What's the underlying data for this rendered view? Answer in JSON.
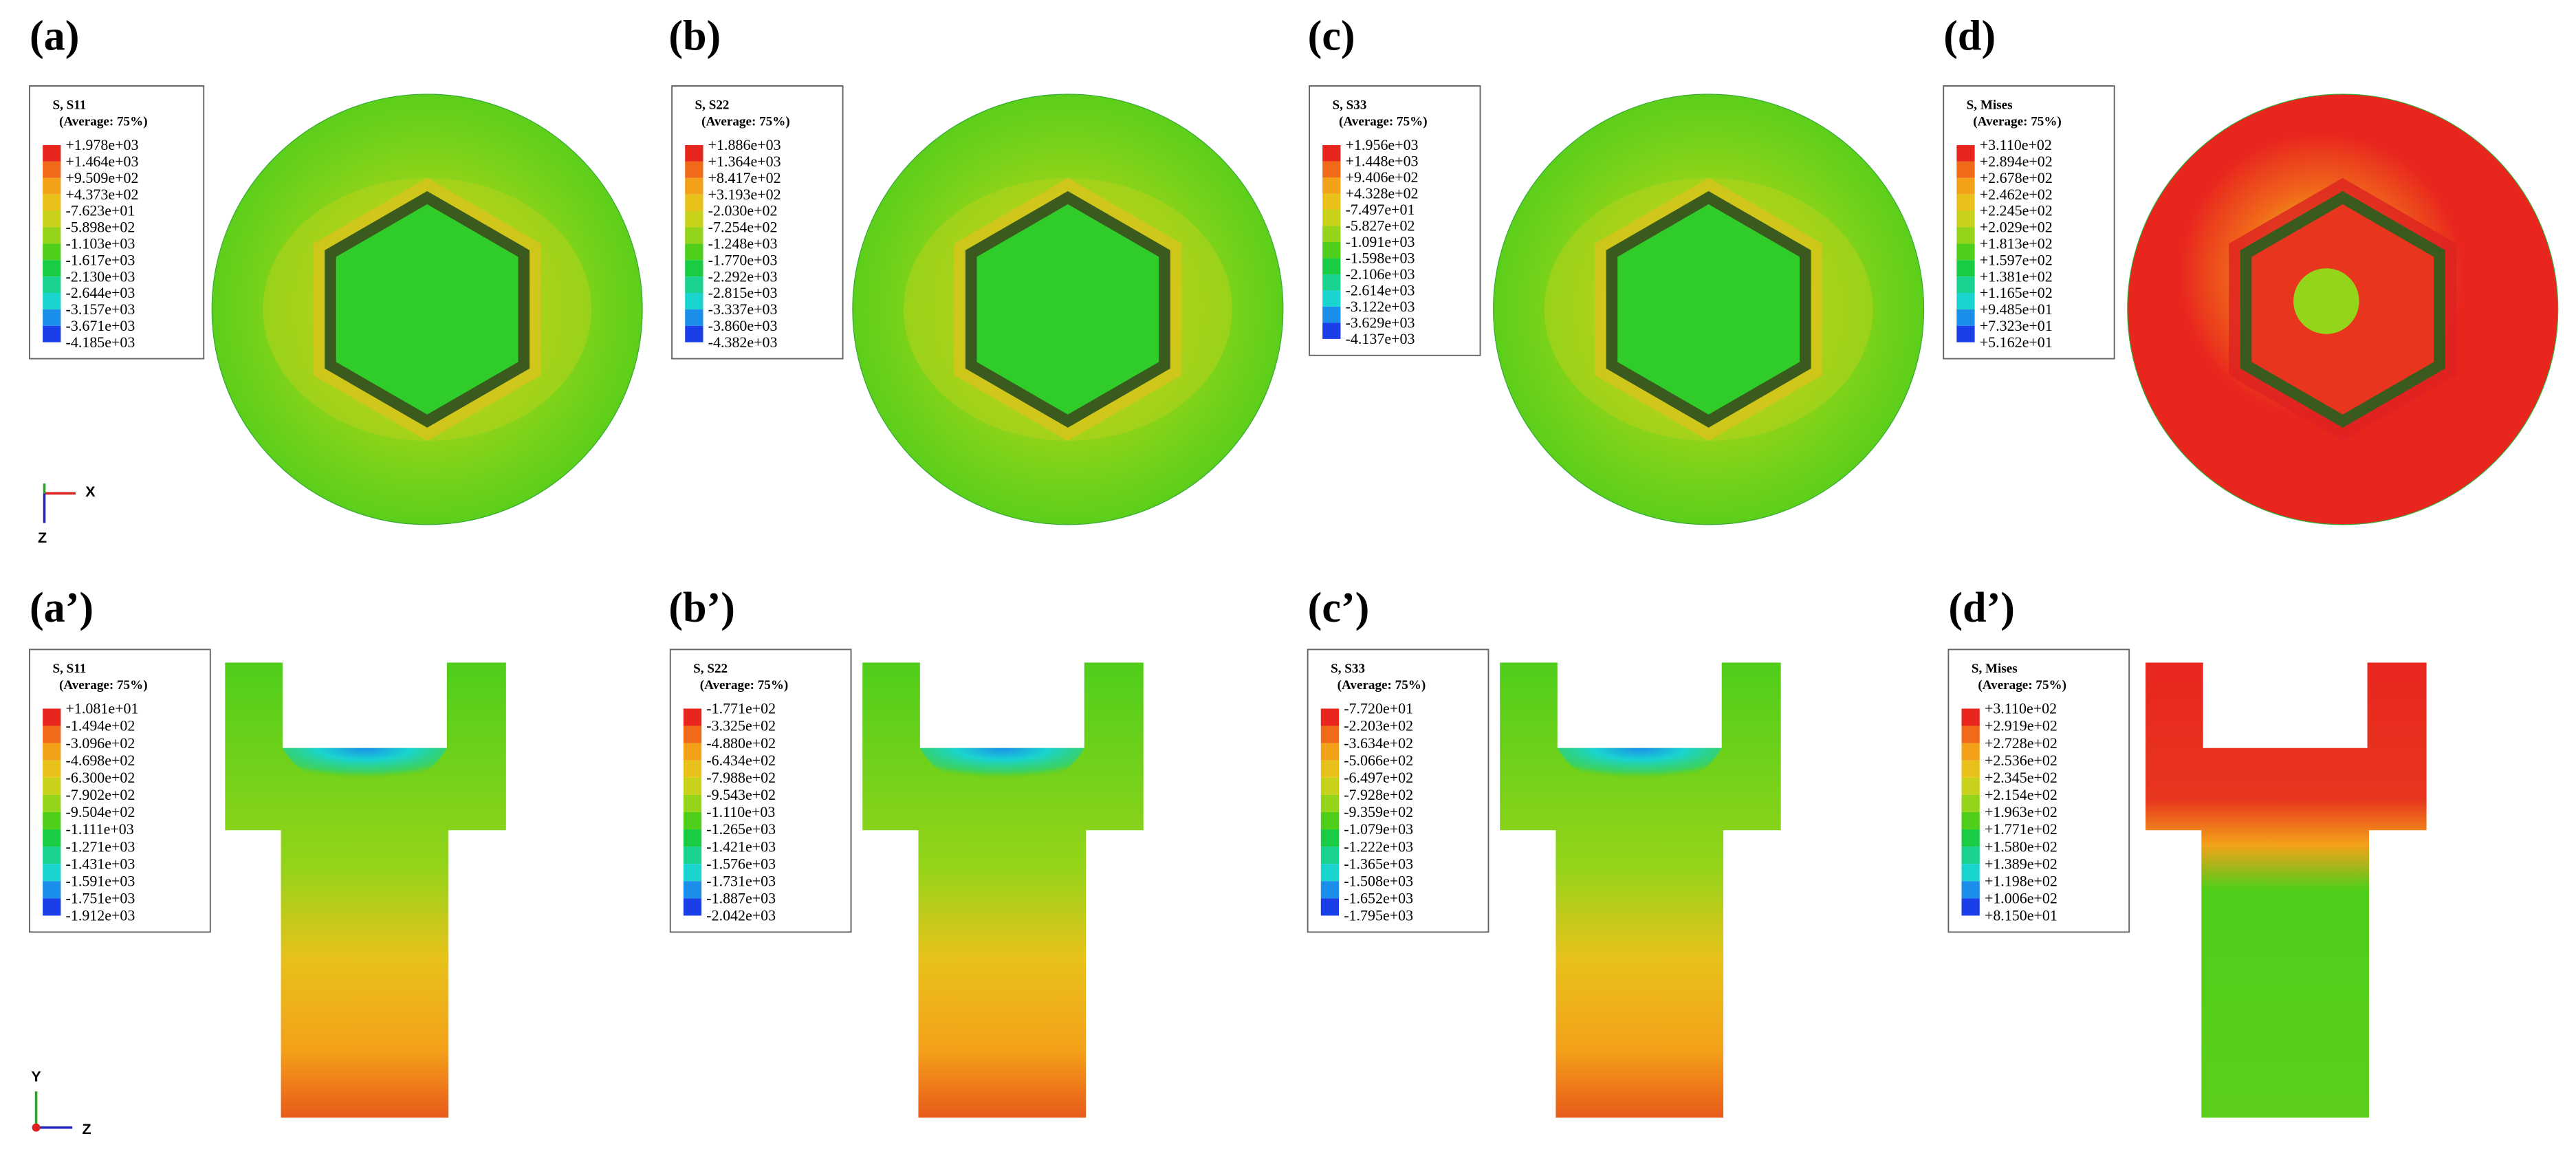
{
  "panels": [
    {
      "label": "(a)",
      "legend_title": "S, S11",
      "legend_subtitle": "(Average: 75%)",
      "legend_values": [
        "+1.978e+03",
        "+1.464e+03",
        "+9.509e+02",
        "+4.373e+02",
        "-7.623e+01",
        "-5.898e+02",
        "-1.103e+03",
        "-1.617e+03",
        "-2.130e+03",
        "-2.644e+03",
        "-3.157e+03",
        "-3.671e+03",
        "-4.185e+03"
      ]
    },
    {
      "label": "(b)",
      "legend_title": "S, S22",
      "legend_subtitle": "(Average: 75%)",
      "legend_values": [
        "+1.886e+03",
        "+1.364e+03",
        "+8.417e+02",
        "+3.193e+02",
        "-2.030e+02",
        "-7.254e+02",
        "-1.248e+03",
        "-1.770e+03",
        "-2.292e+03",
        "-2.815e+03",
        "-3.337e+03",
        "-3.860e+03",
        "-4.382e+03"
      ]
    },
    {
      "label": "(c)",
      "legend_title": "S, S33",
      "legend_subtitle": "(Average: 75%)",
      "legend_values": [
        "+1.956e+03",
        "+1.448e+03",
        "+9.406e+02",
        "+4.328e+02",
        "-7.497e+01",
        "-5.827e+02",
        "-1.091e+03",
        "-1.598e+03",
        "-2.106e+03",
        "-2.614e+03",
        "-3.122e+03",
        "-3.629e+03",
        "-4.137e+03"
      ]
    },
    {
      "label": "(d)",
      "legend_title": "S, Mises",
      "legend_subtitle": "(Average: 75%)",
      "legend_values": [
        "+3.110e+02",
        "+2.894e+02",
        "+2.678e+02",
        "+2.462e+02",
        "+2.245e+02",
        "+2.029e+02",
        "+1.813e+02",
        "+1.597e+02",
        "+1.381e+02",
        "+1.165e+02",
        "+9.485e+01",
        "+7.323e+01",
        "+5.162e+01"
      ]
    },
    {
      "label": "(a’)",
      "legend_title": "S, S11",
      "legend_subtitle": "(Average: 75%)",
      "legend_values": [
        "+1.081e+01",
        "-1.494e+02",
        "-3.096e+02",
        "-4.698e+02",
        "-6.300e+02",
        "-7.902e+02",
        "-9.504e+02",
        "-1.111e+03",
        "-1.271e+03",
        "-1.431e+03",
        "-1.591e+03",
        "-1.751e+03",
        "-1.912e+03"
      ]
    },
    {
      "label": "(b’)",
      "legend_title": "S, S22",
      "legend_subtitle": "(Average: 75%)",
      "legend_values": [
        "-1.771e+02",
        "-3.325e+02",
        "-4.880e+02",
        "-6.434e+02",
        "-7.988e+02",
        "-9.543e+02",
        "-1.110e+03",
        "-1.265e+03",
        "-1.421e+03",
        "-1.576e+03",
        "-1.731e+03",
        "-1.887e+03",
        "-2.042e+03"
      ]
    },
    {
      "label": "(c’)",
      "legend_title": "S, S33",
      "legend_subtitle": "(Average: 75%)",
      "legend_values": [
        "-7.720e+01",
        "-2.203e+02",
        "-3.634e+02",
        "-5.066e+02",
        "-6.497e+02",
        "-7.928e+02",
        "-9.359e+02",
        "-1.079e+03",
        "-1.222e+03",
        "-1.365e+03",
        "-1.508e+03",
        "-1.652e+03",
        "-1.795e+03"
      ]
    },
    {
      "label": "(d’)",
      "legend_title": "S, Mises",
      "legend_subtitle": "(Average: 75%)",
      "legend_values": [
        "+3.110e+02",
        "+2.919e+02",
        "+2.728e+02",
        "+2.536e+02",
        "+2.345e+02",
        "+2.154e+02",
        "+1.963e+02",
        "+1.771e+02",
        "+1.580e+02",
        "+1.389e+02",
        "+1.198e+02",
        "+1.006e+02",
        "+8.150e+01"
      ]
    }
  ],
  "triads": {
    "top": {
      "horizontal": "X",
      "vertical": "Z"
    },
    "bottom": {
      "vertical": "Y",
      "horizontal": "Z"
    }
  }
}
